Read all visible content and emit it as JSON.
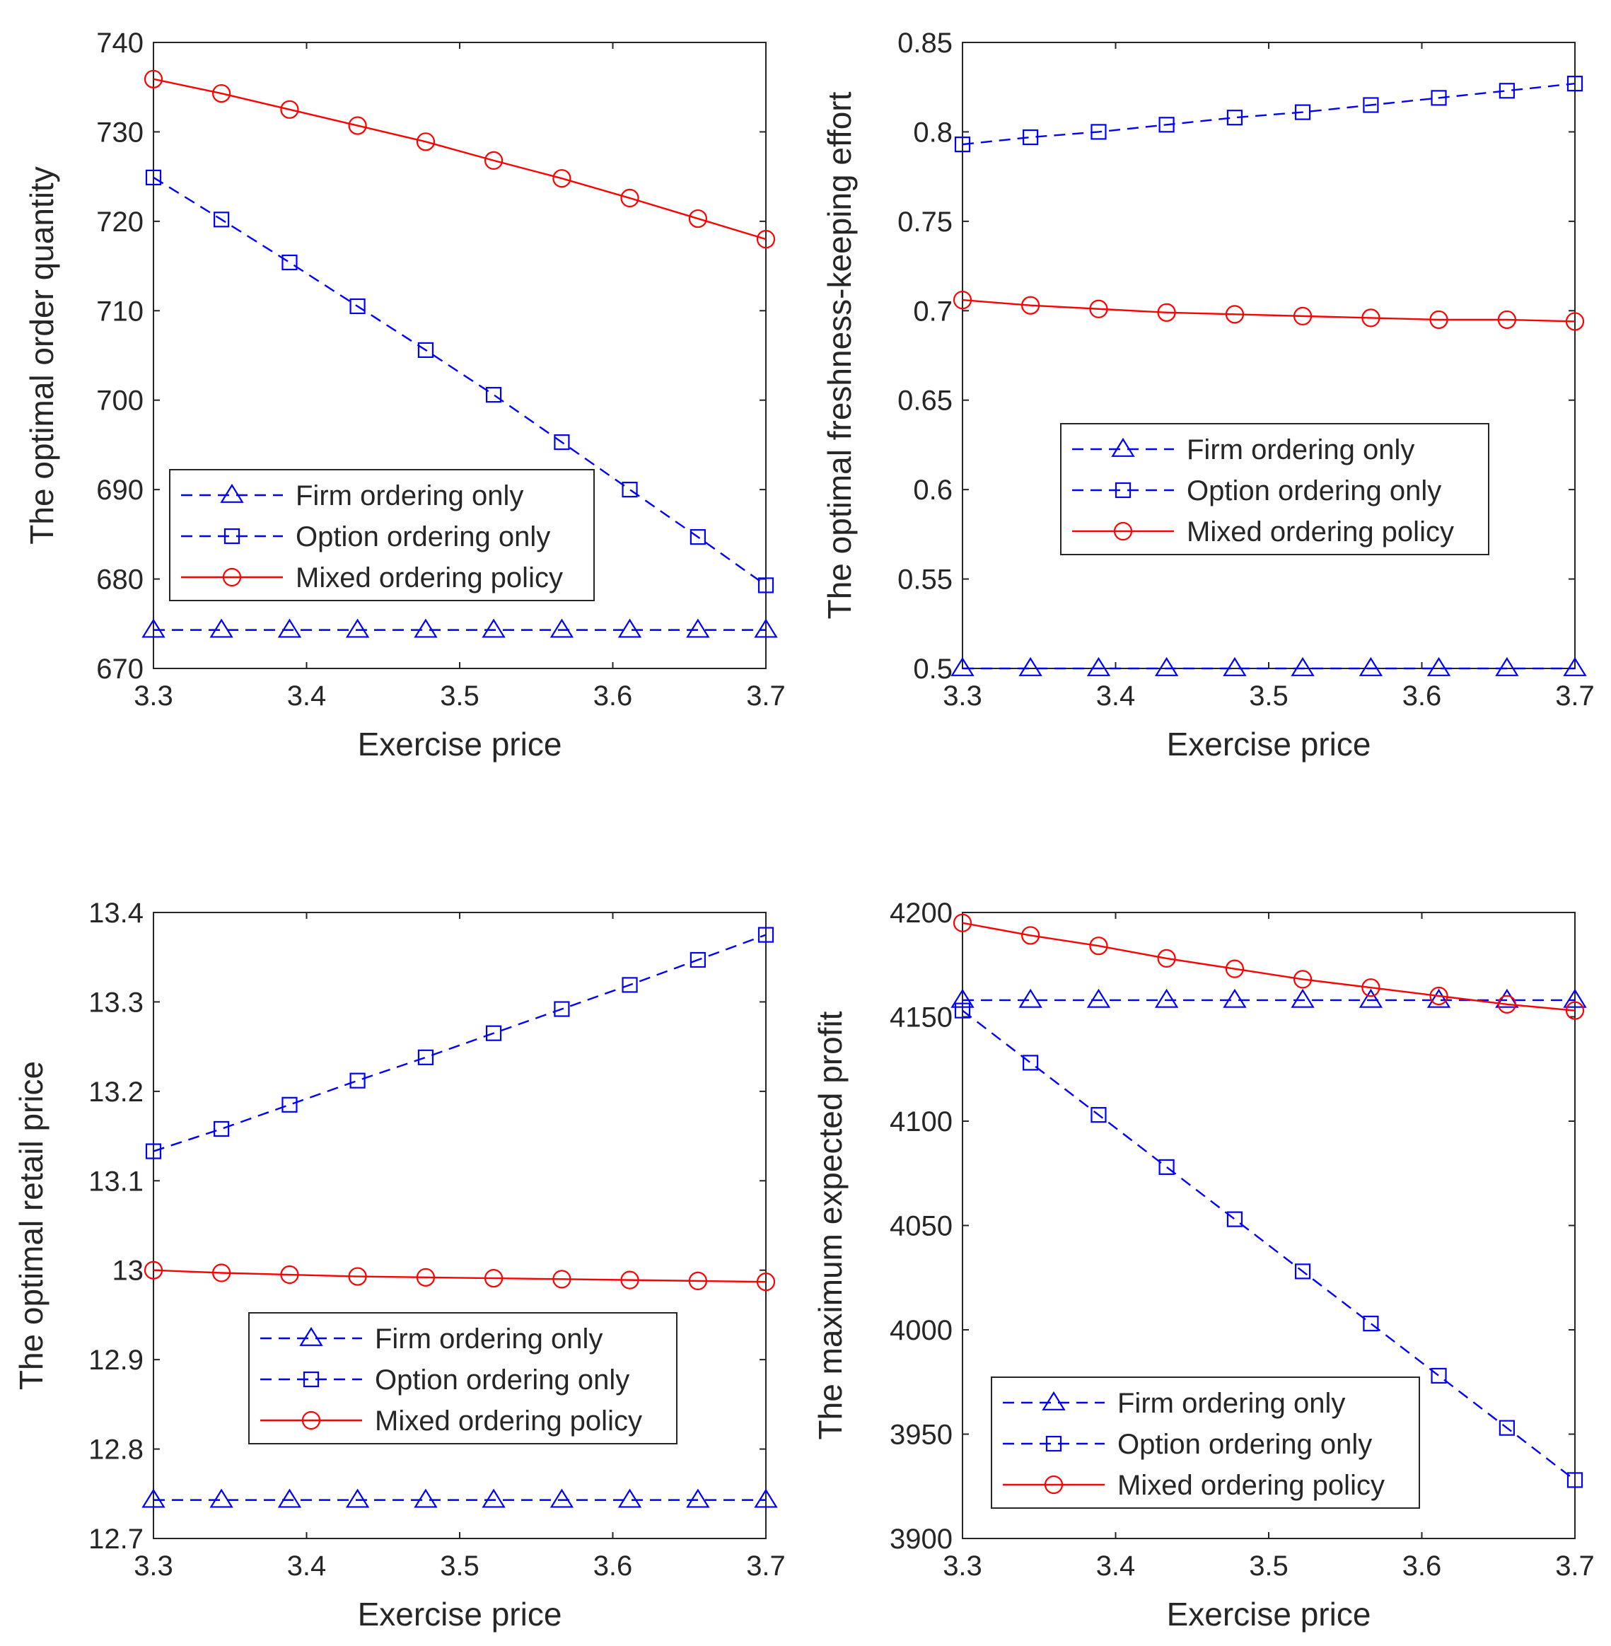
{
  "figure": {
    "xlabel": "Exercise price",
    "legend_labels": [
      "Firm ordering only",
      "Option ordering only",
      "Mixed ordering policy"
    ]
  },
  "colors": {
    "firm": "#0000ff",
    "option": "#0000ff",
    "mixed": "#ff0000",
    "axis": "#262626"
  },
  "chart_data": [
    {
      "type": "line",
      "id": "order-quantity",
      "title": "",
      "xlabel": "Exercise price",
      "ylabel": "The optimal order quantity",
      "xlim": [
        3.3,
        3.7
      ],
      "ylim": [
        670,
        740
      ],
      "xticks": [
        "3.3",
        "3.4",
        "3.5",
        "3.6",
        "3.7"
      ],
      "yticks": [
        "670",
        "680",
        "690",
        "700",
        "710",
        "720",
        "730",
        "740"
      ],
      "legend_position": "center-left",
      "x": [
        3.3,
        3.3444,
        3.3889,
        3.4333,
        3.4778,
        3.5222,
        3.5667,
        3.6111,
        3.6556,
        3.7
      ],
      "series": [
        {
          "name": "Firm ordering only",
          "style": "dashed",
          "marker": "triangle",
          "color": "#0000ff",
          "values": [
            674.3,
            674.3,
            674.3,
            674.3,
            674.3,
            674.3,
            674.3,
            674.3,
            674.3,
            674.3
          ]
        },
        {
          "name": "Option ordering only",
          "style": "dashed",
          "marker": "square",
          "color": "#0000ff",
          "values": [
            724.9,
            720.2,
            715.4,
            710.5,
            705.6,
            700.6,
            695.3,
            690.0,
            684.7,
            679.3
          ]
        },
        {
          "name": "Mixed ordering policy",
          "style": "solid",
          "marker": "circle",
          "color": "#ff0000",
          "values": [
            735.9,
            734.3,
            732.5,
            730.7,
            728.9,
            726.8,
            724.8,
            722.6,
            720.3,
            718.0
          ]
        }
      ]
    },
    {
      "type": "line",
      "id": "freshness-effort",
      "title": "",
      "xlabel": "Exercise price",
      "ylabel": "The optimal freshness-keeping effort",
      "xlim": [
        3.3,
        3.7
      ],
      "ylim": [
        0.5,
        0.85
      ],
      "xticks": [
        "3.3",
        "3.4",
        "3.5",
        "3.6",
        "3.7"
      ],
      "yticks": [
        "0.5",
        "0.55",
        "0.6",
        "0.65",
        "0.7",
        "0.75",
        "0.8",
        "0.85"
      ],
      "legend_position": "center-right",
      "x": [
        3.3,
        3.3444,
        3.3889,
        3.4333,
        3.4778,
        3.5222,
        3.5667,
        3.6111,
        3.6556,
        3.7
      ],
      "series": [
        {
          "name": "Firm ordering only",
          "style": "dashed",
          "marker": "triangle",
          "color": "#0000ff",
          "values": [
            0.5,
            0.5,
            0.5,
            0.5,
            0.5,
            0.5,
            0.5,
            0.5,
            0.5,
            0.5
          ]
        },
        {
          "name": "Option ordering only",
          "style": "dashed",
          "marker": "square",
          "color": "#0000ff",
          "values": [
            0.793,
            0.797,
            0.8,
            0.804,
            0.808,
            0.811,
            0.815,
            0.819,
            0.823,
            0.827
          ]
        },
        {
          "name": "Mixed ordering policy",
          "style": "solid",
          "marker": "circle",
          "color": "#ff0000",
          "values": [
            0.706,
            0.703,
            0.701,
            0.699,
            0.698,
            0.697,
            0.696,
            0.695,
            0.695,
            0.694
          ]
        }
      ]
    },
    {
      "type": "line",
      "id": "retail-price",
      "title": "",
      "xlabel": "Exercise price",
      "ylabel": "The optimal retail price",
      "xlim": [
        3.3,
        3.7
      ],
      "ylim": [
        12.7,
        13.4
      ],
      "xticks": [
        "3.3",
        "3.4",
        "3.5",
        "3.6",
        "3.7"
      ],
      "yticks": [
        "12.7",
        "12.8",
        "12.9",
        "13",
        "13.1",
        "13.2",
        "13.3",
        "13.4"
      ],
      "legend_position": "bottom-center",
      "x": [
        3.3,
        3.3444,
        3.3889,
        3.4333,
        3.4778,
        3.5222,
        3.5667,
        3.6111,
        3.6556,
        3.7
      ],
      "series": [
        {
          "name": "Firm ordering only",
          "style": "dashed",
          "marker": "triangle",
          "color": "#0000ff",
          "values": [
            12.743,
            12.743,
            12.743,
            12.743,
            12.743,
            12.743,
            12.743,
            12.743,
            12.743,
            12.743
          ]
        },
        {
          "name": "Option ordering only",
          "style": "dashed",
          "marker": "square",
          "color": "#0000ff",
          "values": [
            13.133,
            13.158,
            13.185,
            13.212,
            13.238,
            13.265,
            13.292,
            13.319,
            13.347,
            13.375
          ]
        },
        {
          "name": "Mixed ordering policy",
          "style": "solid",
          "marker": "circle",
          "color": "#ff0000",
          "values": [
            13.0,
            12.997,
            12.995,
            12.993,
            12.992,
            12.991,
            12.99,
            12.989,
            12.988,
            12.987
          ]
        }
      ]
    },
    {
      "type": "line",
      "id": "expected-profit",
      "title": "",
      "xlabel": "Exercise price",
      "ylabel": "The maximum expected profit",
      "xlim": [
        3.3,
        3.7
      ],
      "ylim": [
        3900,
        4200
      ],
      "xticks": [
        "3.3",
        "3.4",
        "3.5",
        "3.6",
        "3.7"
      ],
      "yticks": [
        "3900",
        "3950",
        "4000",
        "4050",
        "4100",
        "4150",
        "4200"
      ],
      "legend_position": "bottom-left",
      "x": [
        3.3,
        3.3444,
        3.3889,
        3.4333,
        3.4778,
        3.5222,
        3.5667,
        3.6111,
        3.6556,
        3.7
      ],
      "series": [
        {
          "name": "Firm ordering only",
          "style": "dashed",
          "marker": "triangle",
          "color": "#0000ff",
          "values": [
            4158,
            4158,
            4158,
            4158,
            4158,
            4158,
            4158,
            4158,
            4158,
            4158
          ]
        },
        {
          "name": "Option ordering only",
          "style": "dashed",
          "marker": "square",
          "color": "#0000ff",
          "values": [
            4153,
            4128,
            4103,
            4078,
            4053,
            4028,
            4003,
            3978,
            3953,
            3928
          ]
        },
        {
          "name": "Mixed ordering policy",
          "style": "solid",
          "marker": "circle",
          "color": "#ff0000",
          "values": [
            4195,
            4189,
            4184,
            4178,
            4173,
            4168,
            4164,
            4160,
            4156,
            4153
          ]
        }
      ]
    }
  ]
}
